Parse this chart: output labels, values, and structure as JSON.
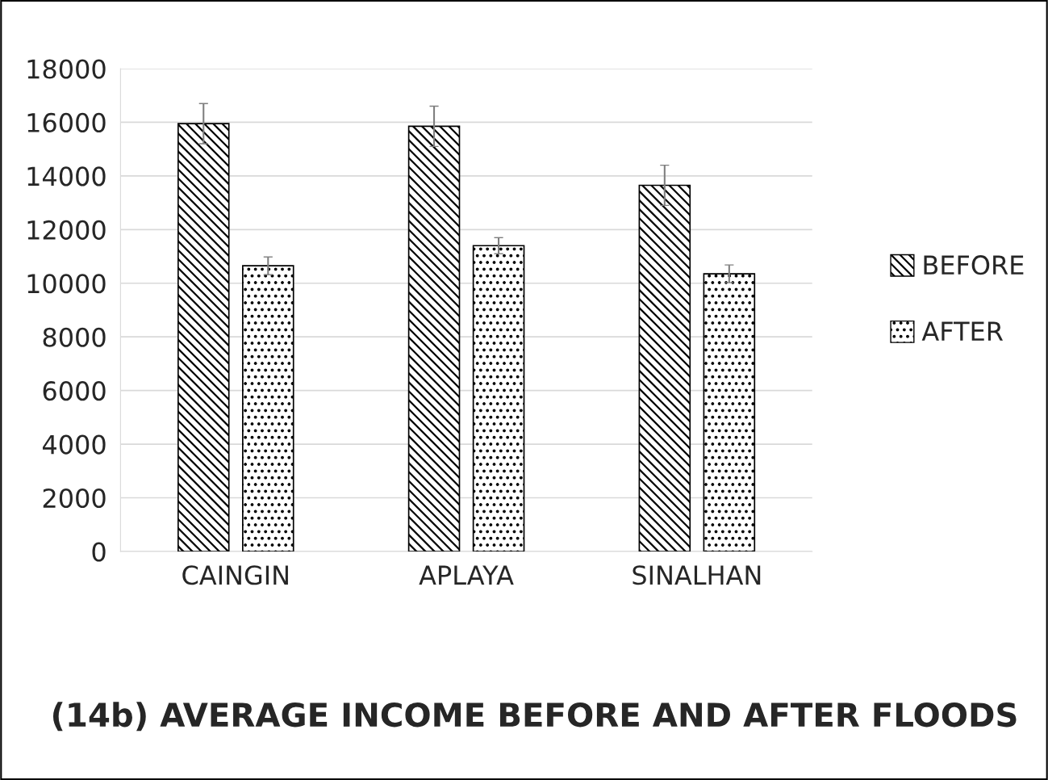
{
  "chart_data": {
    "type": "bar",
    "title": "(14b) AVERAGE INCOME BEFORE AND AFTER FLOODS",
    "categories": [
      "CAINGIN",
      "APLAYA",
      "SINALHAN"
    ],
    "series": [
      {
        "name": "BEFORE",
        "color": "#000000",
        "values": [
          15950,
          15850,
          13650
        ],
        "errors": [
          750,
          750,
          750
        ]
      },
      {
        "name": "AFTER",
        "color": "#000000",
        "values": [
          10650,
          11400,
          10350
        ],
        "errors": [
          330,
          300,
          330
        ]
      }
    ],
    "ylim": [
      0,
      18000
    ],
    "yticks": [
      0,
      2000,
      4000,
      6000,
      8000,
      10000,
      12000,
      14000,
      16000,
      18000
    ],
    "grid": "y",
    "legend": "right"
  }
}
